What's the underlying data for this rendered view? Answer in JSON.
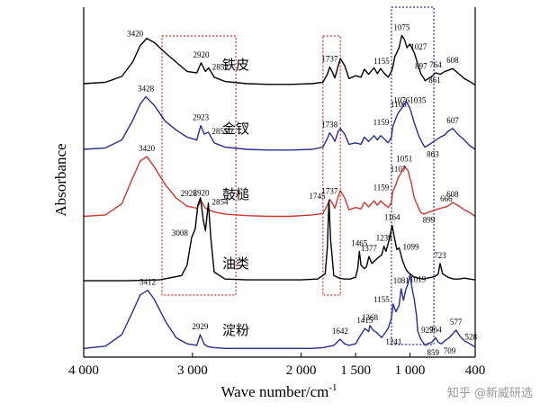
{
  "chart_data": {
    "type": "line",
    "xlabel": "Wave number/cm",
    "xlabel_sup": "-1",
    "ylabel": "Absorbance",
    "x_reversed": true,
    "xlim": [
      4000,
      400
    ],
    "xticks": [
      {
        "value": 4000,
        "label": "4 000"
      },
      {
        "value": 3000,
        "label": "3 000"
      },
      {
        "value": 2000,
        "label": "2 000"
      },
      {
        "value": 1500,
        "label": "1 500"
      },
      {
        "value": 1000,
        "label": "1 000"
      },
      {
        "value": 400,
        "label": "400"
      }
    ],
    "series": [
      {
        "name": "铁皮",
        "color": "#000000",
        "x": [
          4000,
          3800,
          3650,
          3550,
          3480,
          3420,
          3350,
          3250,
          3150,
          3050,
          2960,
          2920,
          2880,
          2852,
          2800,
          2700,
          2500,
          2300,
          2100,
          1900,
          1800,
          1760,
          1737,
          1710,
          1690,
          1660,
          1640,
          1600,
          1560,
          1500,
          1450,
          1420,
          1380,
          1330,
          1300,
          1270,
          1240,
          1200,
          1170,
          1155,
          1140,
          1100,
          1075,
          1050,
          1027,
          1000,
          960,
          920,
          897,
          870,
          861,
          840,
          800,
          764,
          720,
          680,
          640,
          608,
          560,
          500,
          450,
          400
        ],
        "y": [
          0.05,
          0.07,
          0.15,
          0.35,
          0.58,
          0.68,
          0.62,
          0.48,
          0.35,
          0.22,
          0.2,
          0.34,
          0.22,
          0.27,
          0.14,
          0.08,
          0.05,
          0.04,
          0.04,
          0.05,
          0.07,
          0.18,
          0.28,
          0.2,
          0.13,
          0.3,
          0.4,
          0.3,
          0.12,
          0.16,
          0.14,
          0.25,
          0.18,
          0.27,
          0.19,
          0.26,
          0.2,
          0.14,
          0.22,
          0.3,
          0.42,
          0.55,
          0.72,
          0.66,
          0.55,
          0.6,
          0.48,
          0.28,
          0.18,
          0.12,
          0.09,
          0.11,
          0.15,
          0.2,
          0.18,
          0.22,
          0.24,
          0.26,
          0.2,
          0.12,
          0.08,
          0.03
        ]
      },
      {
        "name": "金钗",
        "color": "#2b2d8a",
        "x": [
          4000,
          3800,
          3650,
          3550,
          3480,
          3428,
          3350,
          3250,
          3150,
          3050,
          2960,
          2923,
          2890,
          2855,
          2800,
          2700,
          2500,
          2300,
          2100,
          1900,
          1800,
          1760,
          1738,
          1710,
          1690,
          1660,
          1640,
          1600,
          1560,
          1500,
          1450,
          1420,
          1380,
          1330,
          1300,
          1270,
          1240,
          1200,
          1170,
          1159,
          1130,
          1106,
          1076,
          1050,
          1035,
          1000,
          960,
          920,
          880,
          863,
          840,
          800,
          760,
          720,
          680,
          650,
          607,
          560,
          500,
          450,
          400
        ],
        "y": [
          0.05,
          0.07,
          0.18,
          0.45,
          0.68,
          0.78,
          0.66,
          0.44,
          0.32,
          0.22,
          0.18,
          0.38,
          0.26,
          0.29,
          0.14,
          0.08,
          0.05,
          0.04,
          0.04,
          0.05,
          0.08,
          0.2,
          0.28,
          0.22,
          0.16,
          0.3,
          0.34,
          0.26,
          0.12,
          0.14,
          0.12,
          0.22,
          0.16,
          0.24,
          0.18,
          0.24,
          0.2,
          0.14,
          0.22,
          0.36,
          0.48,
          0.56,
          0.62,
          0.68,
          0.72,
          0.62,
          0.42,
          0.24,
          0.12,
          0.08,
          0.1,
          0.14,
          0.18,
          0.22,
          0.25,
          0.3,
          0.34,
          0.26,
          0.18,
          0.1,
          0.05
        ]
      },
      {
        "name": "鼓槌",
        "color": "#c8382e",
        "x": [
          4000,
          3800,
          3650,
          3550,
          3480,
          3420,
          3350,
          3250,
          3150,
          3050,
          2960,
          2920,
          2880,
          2850,
          2800,
          2700,
          2500,
          2300,
          2100,
          1900,
          1800,
          1760,
          1737,
          1710,
          1690,
          1660,
          1640,
          1600,
          1560,
          1500,
          1450,
          1420,
          1380,
          1330,
          1300,
          1270,
          1240,
          1200,
          1170,
          1159,
          1130,
          1107,
          1080,
          1051,
          1020,
          990,
          960,
          920,
          899,
          870,
          840,
          800,
          760,
          720,
          666,
          640,
          608,
          560,
          500,
          450,
          400
        ],
        "y": [
          0.03,
          0.05,
          0.2,
          0.55,
          0.78,
          0.84,
          0.7,
          0.46,
          0.28,
          0.17,
          0.14,
          0.24,
          0.14,
          0.12,
          0.09,
          0.06,
          0.04,
          0.03,
          0.03,
          0.05,
          0.07,
          0.18,
          0.26,
          0.2,
          0.14,
          0.3,
          0.38,
          0.28,
          0.12,
          0.15,
          0.13,
          0.22,
          0.16,
          0.24,
          0.18,
          0.24,
          0.2,
          0.15,
          0.22,
          0.36,
          0.46,
          0.56,
          0.62,
          0.7,
          0.66,
          0.5,
          0.28,
          0.14,
          0.08,
          0.06,
          0.08,
          0.1,
          0.12,
          0.14,
          0.16,
          0.18,
          0.22,
          0.18,
          0.12,
          0.08,
          0.03
        ]
      },
      {
        "name": "油类",
        "color": "#000000",
        "x": [
          4000,
          3600,
          3300,
          3100,
          3050,
          3008,
          2975,
          2950,
          2926,
          2900,
          2880,
          2854,
          2830,
          2800,
          2700,
          2500,
          2300,
          2000,
          1850,
          1780,
          1760,
          1745,
          1730,
          1700,
          1650,
          1600,
          1550,
          1500,
          1480,
          1465,
          1450,
          1420,
          1400,
          1377,
          1350,
          1300,
          1260,
          1239,
          1220,
          1200,
          1180,
          1164,
          1140,
          1120,
          1099,
          1070,
          1040,
          1019,
          1000,
          960,
          920,
          880,
          840,
          800,
          770,
          740,
          723,
          700,
          650,
          600,
          550,
          500,
          450,
          400
        ],
        "y": [
          0.02,
          0.02,
          0.03,
          0.08,
          0.2,
          0.52,
          0.62,
          0.9,
          0.98,
          0.72,
          0.6,
          0.92,
          0.5,
          0.12,
          0.04,
          0.03,
          0.03,
          0.03,
          0.04,
          0.1,
          0.4,
          0.95,
          0.5,
          0.08,
          0.05,
          0.04,
          0.04,
          0.06,
          0.16,
          0.36,
          0.2,
          0.16,
          0.18,
          0.3,
          0.22,
          0.28,
          0.32,
          0.42,
          0.36,
          0.45,
          0.56,
          0.66,
          0.5,
          0.38,
          0.4,
          0.26,
          0.16,
          0.12,
          0.1,
          0.06,
          0.05,
          0.04,
          0.05,
          0.06,
          0.07,
          0.1,
          0.22,
          0.1,
          0.06,
          0.04,
          0.04,
          0.05,
          0.04,
          0.03
        ]
      },
      {
        "name": "淀粉",
        "color": "#2b2d8a",
        "x": [
          4000,
          3800,
          3650,
          3550,
          3480,
          3412,
          3350,
          3250,
          3150,
          3050,
          2960,
          2929,
          2890,
          2850,
          2800,
          2700,
          2500,
          2300,
          2100,
          1900,
          1800,
          1700,
          1642,
          1600,
          1560,
          1500,
          1450,
          1415,
          1380,
          1368,
          1340,
          1300,
          1260,
          1241,
          1200,
          1170,
          1155,
          1130,
          1100,
          1081,
          1060,
          1040,
          1019,
          1000,
          980,
          960,
          940,
          929,
          900,
          880,
          859,
          840,
          800,
          764,
          740,
          709,
          680,
          640,
          600,
          577,
          550,
          528,
          500,
          450,
          400
        ],
        "y": [
          0.02,
          0.05,
          0.2,
          0.5,
          0.72,
          0.78,
          0.66,
          0.38,
          0.16,
          0.08,
          0.06,
          0.2,
          0.07,
          0.04,
          0.03,
          0.02,
          0.02,
          0.02,
          0.02,
          0.02,
          0.03,
          0.06,
          0.14,
          0.08,
          0.06,
          0.08,
          0.2,
          0.28,
          0.24,
          0.32,
          0.26,
          0.22,
          0.16,
          0.2,
          0.28,
          0.42,
          0.6,
          0.5,
          0.58,
          0.8,
          0.65,
          0.78,
          0.86,
          0.98,
          0.8,
          0.66,
          0.45,
          0.25,
          0.14,
          0.1,
          0.06,
          0.08,
          0.1,
          0.16,
          0.1,
          0.08,
          0.12,
          0.16,
          0.22,
          0.26,
          0.2,
          0.16,
          0.12,
          0.08,
          0.04
        ]
      }
    ],
    "peak_labels": [
      {
        "series": 0,
        "labels": [
          {
            "x": 3420,
            "text": "3420",
            "side": "left"
          },
          {
            "x": 2920,
            "text": "2920",
            "side": "up"
          },
          {
            "x": 2852,
            "text": "2852",
            "side": "right"
          },
          {
            "x": 1737,
            "text": "1737",
            "side": "up"
          },
          {
            "x": 1155,
            "text": "1155",
            "side": "left"
          },
          {
            "x": 1075,
            "text": "1075",
            "side": "up"
          },
          {
            "x": 1027,
            "text": "1027",
            "side": "right"
          },
          {
            "x": 897,
            "text": "897",
            "side": "up"
          },
          {
            "x": 861,
            "text": "861",
            "side": "right"
          },
          {
            "x": 764,
            "text": "764",
            "side": "up"
          },
          {
            "x": 608,
            "text": "608",
            "side": "up"
          }
        ]
      },
      {
        "series": 1,
        "labels": [
          {
            "x": 3428,
            "text": "3428",
            "side": "up"
          },
          {
            "x": 2923,
            "text": "2923",
            "side": "up"
          },
          {
            "x": 2855,
            "text": "2855",
            "side": "right"
          },
          {
            "x": 1738,
            "text": "1738",
            "side": "up"
          },
          {
            "x": 1159,
            "text": "1159",
            "side": "left"
          },
          {
            "x": 1106,
            "text": "1106",
            "side": "up"
          },
          {
            "x": 1076,
            "text": "1076",
            "side": "up"
          },
          {
            "x": 1035,
            "text": "1035",
            "side": "right"
          },
          {
            "x": 863,
            "text": "863",
            "side": "down"
          },
          {
            "x": 607,
            "text": "607",
            "side": "up"
          }
        ]
      },
      {
        "series": 2,
        "labels": [
          {
            "x": 3420,
            "text": "3420",
            "side": "up"
          },
          {
            "x": 2920,
            "text": "2920",
            "side": "up"
          },
          {
            "x": 1737,
            "text": "1737",
            "side": "up"
          },
          {
            "x": 1159,
            "text": "1159",
            "side": "left"
          },
          {
            "x": 1107,
            "text": "1107",
            "side": "up"
          },
          {
            "x": 1051,
            "text": "1051",
            "side": "up"
          },
          {
            "x": 899,
            "text": "899",
            "side": "down"
          },
          {
            "x": 666,
            "text": "666",
            "side": "up"
          },
          {
            "x": 608,
            "text": "608",
            "side": "up"
          }
        ]
      },
      {
        "series": 3,
        "labels": [
          {
            "x": 3008,
            "text": "3008",
            "side": "left"
          },
          {
            "x": 2926,
            "text": "2926",
            "side": "left"
          },
          {
            "x": 2854,
            "text": "2854",
            "side": "right"
          },
          {
            "x": 1745,
            "text": "1745",
            "side": "left"
          },
          {
            "x": 1465,
            "text": "1465",
            "side": "up"
          },
          {
            "x": 1377,
            "text": "1377",
            "side": "up"
          },
          {
            "x": 1239,
            "text": "1239",
            "side": "up"
          },
          {
            "x": 1164,
            "text": "1164",
            "side": "up"
          },
          {
            "x": 1099,
            "text": "1099",
            "side": "right"
          },
          {
            "x": 1019,
            "text": "1019",
            "side": "down"
          },
          {
            "x": 723,
            "text": "723",
            "side": "up"
          }
        ]
      },
      {
        "series": 4,
        "labels": [
          {
            "x": 3412,
            "text": "3412",
            "side": "up"
          },
          {
            "x": 2929,
            "text": "2929",
            "side": "up"
          },
          {
            "x": 1642,
            "text": "1642",
            "side": "up"
          },
          {
            "x": 1415,
            "text": "1415",
            "side": "up"
          },
          {
            "x": 1368,
            "text": "1368",
            "side": "up"
          },
          {
            "x": 1241,
            "text": "1241",
            "side": "down"
          },
          {
            "x": 1155,
            "text": "1155",
            "side": "left"
          },
          {
            "x": 1081,
            "text": "1081",
            "side": "up"
          },
          {
            "x": 929,
            "text": "929",
            "side": "right"
          },
          {
            "x": 859,
            "text": "859",
            "side": "down"
          },
          {
            "x": 764,
            "text": "764",
            "side": "up"
          },
          {
            "x": 709,
            "text": "709",
            "side": "down"
          },
          {
            "x": 577,
            "text": "577",
            "side": "up"
          },
          {
            "x": 528,
            "text": "528",
            "side": "right"
          }
        ]
      }
    ],
    "highlight_regions": [
      {
        "xmin": 2600,
        "xmax": 3280,
        "color": "#d22b2b",
        "style": "dotted"
      },
      {
        "xmin": 1640,
        "xmax": 1800,
        "color": "#d22b2b",
        "style": "dotted"
      },
      {
        "xmin": 780,
        "xmax": 1170,
        "color": "#2b2d8a",
        "style": "dotted"
      }
    ]
  },
  "watermark": "知乎 @新威研选"
}
